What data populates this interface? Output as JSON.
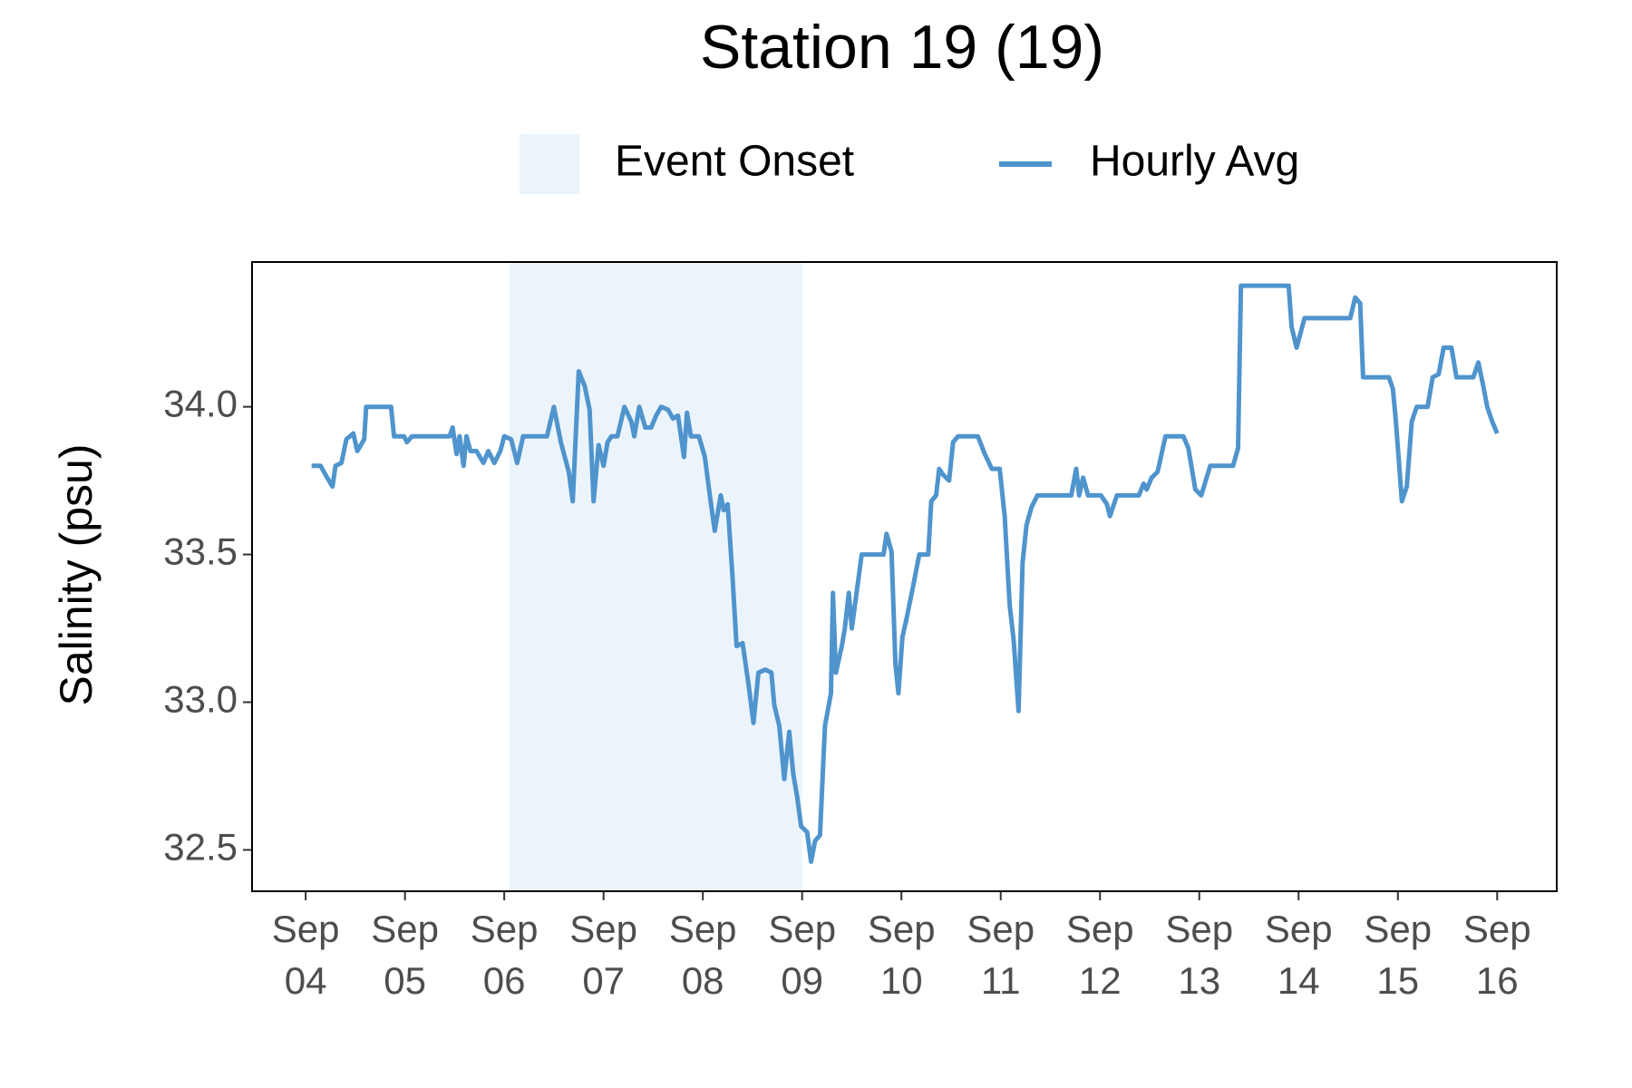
{
  "chart_data": {
    "type": "line",
    "title": "Station 19 (19)",
    "y_label": "Salinity (psu)",
    "x": [
      4.06,
      4.15,
      4.2,
      4.27,
      4.3,
      4.36,
      4.41,
      4.48,
      4.52,
      4.59,
      4.61,
      4.86,
      4.89,
      4.99,
      5.02,
      5.07,
      5.45,
      5.48,
      5.52,
      5.55,
      5.59,
      5.62,
      5.66,
      5.72,
      5.79,
      5.84,
      5.9,
      5.96,
      6.0,
      6.07,
      6.13,
      6.19,
      6.43,
      6.5,
      6.57,
      6.65,
      6.69,
      6.75,
      6.81,
      6.86,
      6.9,
      6.95,
      7.0,
      7.04,
      7.08,
      7.14,
      7.21,
      7.28,
      7.31,
      7.36,
      7.42,
      7.48,
      7.53,
      7.58,
      7.65,
      7.7,
      7.75,
      7.81,
      7.84,
      7.88,
      7.96,
      8.02,
      8.07,
      8.12,
      8.18,
      8.21,
      8.25,
      8.3,
      8.34,
      8.4,
      8.46,
      8.51,
      8.56,
      8.63,
      8.69,
      8.72,
      8.77,
      8.82,
      8.87,
      8.91,
      8.95,
      8.99,
      9.05,
      9.09,
      9.13,
      9.18,
      9.23,
      9.29,
      9.31,
      9.34,
      9.4,
      9.43,
      9.47,
      9.5,
      9.6,
      9.82,
      9.85,
      9.9,
      9.94,
      9.97,
      10.01,
      10.05,
      10.11,
      10.18,
      10.27,
      10.3,
      10.35,
      10.38,
      10.42,
      10.48,
      10.52,
      10.57,
      10.77,
      10.84,
      10.91,
      10.99,
      11.04,
      11.09,
      11.13,
      11.18,
      11.22,
      11.26,
      11.31,
      11.37,
      11.71,
      11.76,
      11.79,
      11.83,
      11.88,
      12.01,
      12.07,
      12.1,
      12.17,
      12.39,
      12.44,
      12.47,
      12.52,
      12.58,
      12.66,
      12.84,
      12.89,
      12.96,
      13.02,
      13.11,
      13.34,
      13.39,
      13.42,
      13.9,
      13.93,
      13.98,
      14.06,
      14.52,
      14.57,
      14.62,
      14.65,
      14.91,
      14.95,
      14.98,
      15.04,
      15.09,
      15.14,
      15.19,
      15.3,
      15.35,
      15.41,
      15.46,
      15.54,
      15.59,
      15.76,
      15.81,
      15.86,
      15.9,
      15.95,
      16.0
    ],
    "series": [
      {
        "name": "Hourly Avg",
        "color": "#4f94cd",
        "values": [
          33.8,
          33.8,
          33.77,
          33.73,
          33.8,
          33.81,
          33.89,
          33.91,
          33.85,
          33.89,
          34.0,
          34.0,
          33.9,
          33.9,
          33.88,
          33.9,
          33.9,
          33.93,
          33.84,
          33.9,
          33.8,
          33.9,
          33.85,
          33.85,
          33.81,
          33.85,
          33.81,
          33.85,
          33.9,
          33.89,
          33.81,
          33.9,
          33.9,
          34.0,
          33.88,
          33.78,
          33.68,
          34.12,
          34.07,
          33.99,
          33.68,
          33.87,
          33.8,
          33.88,
          33.9,
          33.9,
          34.0,
          33.95,
          33.9,
          34.0,
          33.93,
          33.93,
          33.97,
          34.0,
          33.99,
          33.96,
          33.97,
          33.83,
          33.98,
          33.9,
          33.9,
          33.83,
          33.7,
          33.58,
          33.7,
          33.65,
          33.67,
          33.42,
          33.19,
          33.2,
          33.06,
          32.93,
          33.1,
          33.11,
          33.1,
          32.99,
          32.92,
          32.74,
          32.9,
          32.76,
          32.68,
          32.58,
          32.56,
          32.46,
          32.53,
          32.55,
          32.92,
          33.03,
          33.37,
          33.1,
          33.19,
          33.25,
          33.37,
          33.25,
          33.5,
          33.5,
          33.57,
          33.51,
          33.13,
          33.03,
          33.22,
          33.28,
          33.38,
          33.5,
          33.5,
          33.68,
          33.7,
          33.79,
          33.77,
          33.75,
          33.88,
          33.9,
          33.9,
          33.84,
          33.79,
          33.79,
          33.63,
          33.33,
          33.21,
          32.97,
          33.47,
          33.6,
          33.66,
          33.7,
          33.7,
          33.79,
          33.7,
          33.76,
          33.7,
          33.7,
          33.67,
          33.63,
          33.7,
          33.7,
          33.74,
          33.72,
          33.76,
          33.78,
          33.9,
          33.9,
          33.86,
          33.72,
          33.7,
          33.8,
          33.8,
          33.86,
          34.41,
          34.41,
          34.27,
          34.2,
          34.3,
          34.3,
          34.37,
          34.35,
          34.1,
          34.1,
          34.06,
          33.95,
          33.68,
          33.73,
          33.95,
          34.0,
          34.0,
          34.1,
          34.11,
          34.2,
          34.2,
          34.1,
          34.1,
          34.15,
          34.07,
          34.0,
          33.95,
          33.91
        ]
      }
    ],
    "shaded": {
      "name": "Event Onset",
      "start": 6.05,
      "end": 9.0,
      "color": "#ecf4fb"
    },
    "xlim": [
      3.46,
      16.6
    ],
    "xticks": [
      {
        "value": 4,
        "label": "Sep 04"
      },
      {
        "value": 5,
        "label": "Sep 05"
      },
      {
        "value": 6,
        "label": "Sep 06"
      },
      {
        "value": 7,
        "label": "Sep 07"
      },
      {
        "value": 8,
        "label": "Sep 08"
      },
      {
        "value": 9,
        "label": "Sep 09"
      },
      {
        "value": 10,
        "label": "Sep 10"
      },
      {
        "value": 11,
        "label": "Sep 11"
      },
      {
        "value": 12,
        "label": "Sep 12"
      },
      {
        "value": 13,
        "label": "Sep 13"
      },
      {
        "value": 14,
        "label": "Sep 14"
      },
      {
        "value": 15,
        "label": "Sep 15"
      },
      {
        "value": 16,
        "label": "Sep 16"
      }
    ],
    "ylim": [
      32.36,
      34.49
    ],
    "yticks": [
      {
        "value": 32.5,
        "label": "32.5"
      },
      {
        "value": 33,
        "label": "33.0"
      },
      33.5,
      {
        "value": 34,
        "label": "34.0"
      }
    ],
    "legend": "top",
    "grid": false
  }
}
